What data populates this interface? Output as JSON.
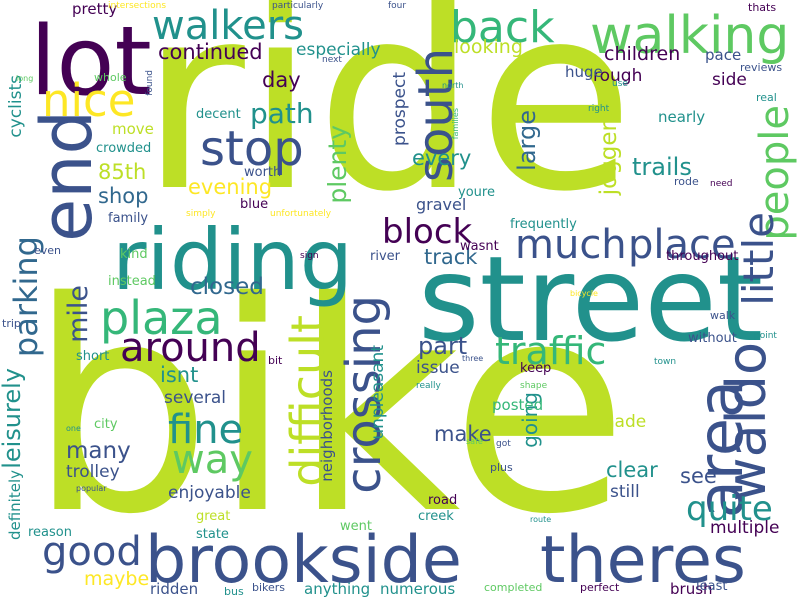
{
  "background": "#ffffff",
  "palette": [
    "#440154",
    "#3b528b",
    "#21918c",
    "#5ec962",
    "#c2df23",
    "#fde725"
  ],
  "words": [
    {
      "text": "bike",
      "color": "#bddf26"
    },
    {
      "text": "ride",
      "color": "#bddf26"
    },
    {
      "text": "street",
      "color": "#21918c"
    },
    {
      "text": "lot",
      "color": "#440154"
    },
    {
      "text": "riding",
      "color": "#21918c"
    },
    {
      "text": "brookside",
      "color": "#3b528b"
    },
    {
      "text": "theres",
      "color": "#3b528b"
    },
    {
      "text": "walking",
      "color": "#5ec962"
    },
    {
      "text": "walkers",
      "color": "#21918c"
    },
    {
      "text": "back",
      "color": "#35b779"
    },
    {
      "text": "end",
      "color": "#3b528b"
    },
    {
      "text": "nice",
      "color": "#fde725"
    },
    {
      "text": "stop",
      "color": "#3b528b"
    },
    {
      "text": "south",
      "color": "#3b528b"
    },
    {
      "text": "much",
      "color": "#3b528b"
    },
    {
      "text": "place",
      "color": "#3b528b"
    },
    {
      "text": "people",
      "color": "#5ec962"
    },
    {
      "text": "area",
      "color": "#3b528b"
    },
    {
      "text": "waldo",
      "color": "#3b528b"
    },
    {
      "text": "little",
      "color": "#3b528b"
    },
    {
      "text": "plaza",
      "color": "#35b779"
    },
    {
      "text": "around",
      "color": "#440154"
    },
    {
      "text": "traffic",
      "color": "#35b779"
    },
    {
      "text": "crossing",
      "color": "#3b528b"
    },
    {
      "text": "difficult",
      "color": "#bddf26"
    },
    {
      "text": "fine",
      "color": "#21918c"
    },
    {
      "text": "way",
      "color": "#5ec962"
    },
    {
      "text": "good",
      "color": "#3b528b"
    },
    {
      "text": "quite",
      "color": "#21918c"
    },
    {
      "text": "block",
      "color": "#440154"
    },
    {
      "text": "parking",
      "color": "#31688e"
    },
    {
      "text": "continued",
      "color": "#440154"
    },
    {
      "text": "especially",
      "color": "#21918c"
    },
    {
      "text": "looking",
      "color": "#bddf26"
    },
    {
      "text": "children",
      "color": "#440154"
    },
    {
      "text": "path",
      "color": "#21918c"
    },
    {
      "text": "day",
      "color": "#440154"
    },
    {
      "text": "evening",
      "color": "#fde725"
    },
    {
      "text": "85th",
      "color": "#bddf26"
    },
    {
      "text": "shop",
      "color": "#31688e"
    },
    {
      "text": "every",
      "color": "#21918c"
    },
    {
      "text": "trails",
      "color": "#21918c"
    },
    {
      "text": "track",
      "color": "#31688e"
    },
    {
      "text": "closed",
      "color": "#31688e"
    },
    {
      "text": "mile",
      "color": "#3b528b"
    },
    {
      "text": "plenty",
      "color": "#5ec962"
    },
    {
      "text": "joggers",
      "color": "#bddf26"
    },
    {
      "text": "large",
      "color": "#31688e"
    },
    {
      "text": "prospect",
      "color": "#3b528b"
    },
    {
      "text": "gravel",
      "color": "#3b528b"
    },
    {
      "text": "rough",
      "color": "#440154"
    },
    {
      "text": "side",
      "color": "#440154"
    },
    {
      "text": "nearly",
      "color": "#21918c"
    },
    {
      "text": "huge",
      "color": "#3b528b"
    },
    {
      "text": "pace",
      "color": "#3b528b"
    },
    {
      "text": "part",
      "color": "#3b528b"
    },
    {
      "text": "isnt",
      "color": "#21918c"
    },
    {
      "text": "several",
      "color": "#3b528b"
    },
    {
      "text": "leisurely",
      "color": "#21918c"
    },
    {
      "text": "many",
      "color": "#3b528b"
    },
    {
      "text": "trolley",
      "color": "#3b528b"
    },
    {
      "text": "enjoyable",
      "color": "#3b528b"
    },
    {
      "text": "make",
      "color": "#3b528b"
    },
    {
      "text": "going",
      "color": "#21918c"
    },
    {
      "text": "clear",
      "color": "#21918c"
    },
    {
      "text": "see",
      "color": "#3b528b"
    },
    {
      "text": "still",
      "color": "#3b528b"
    },
    {
      "text": "made",
      "color": "#bddf26"
    },
    {
      "text": "posted",
      "color": "#35b779"
    },
    {
      "text": "issue",
      "color": "#3b528b"
    },
    {
      "text": "unpleasant",
      "color": "#21918c"
    },
    {
      "text": "neighborhoods",
      "color": "#3b528b"
    },
    {
      "text": "maybe",
      "color": "#fde725"
    },
    {
      "text": "ridden",
      "color": "#3b528b"
    },
    {
      "text": "anything",
      "color": "#21918c"
    },
    {
      "text": "numerous",
      "color": "#21918c"
    },
    {
      "text": "multiple",
      "color": "#440154"
    },
    {
      "text": "brush",
      "color": "#440154"
    },
    {
      "text": "definitely",
      "color": "#21918c"
    },
    {
      "text": "cyclists",
      "color": "#21918c"
    },
    {
      "text": "pretty",
      "color": "#440154"
    },
    {
      "text": "move",
      "color": "#bddf26"
    },
    {
      "text": "crowded",
      "color": "#21918c"
    },
    {
      "text": "decent",
      "color": "#21918c"
    },
    {
      "text": "worth",
      "color": "#3b528b"
    },
    {
      "text": "blue",
      "color": "#440154"
    },
    {
      "text": "family",
      "color": "#3b528b"
    },
    {
      "text": "kind",
      "color": "#5ec962"
    },
    {
      "text": "instead",
      "color": "#5ec962"
    },
    {
      "text": "even",
      "color": "#3b528b"
    },
    {
      "text": "river",
      "color": "#3b528b"
    },
    {
      "text": "wasnt",
      "color": "#440154"
    },
    {
      "text": "frequently",
      "color": "#21918c"
    },
    {
      "text": "throughout",
      "color": "#440154"
    },
    {
      "text": "without",
      "color": "#3b528b"
    },
    {
      "text": "keep",
      "color": "#440154"
    },
    {
      "text": "short",
      "color": "#21918c"
    },
    {
      "text": "bit",
      "color": "#440154"
    },
    {
      "text": "city",
      "color": "#5ec962"
    },
    {
      "text": "road",
      "color": "#440154"
    },
    {
      "text": "creek",
      "color": "#21918c"
    },
    {
      "text": "went",
      "color": "#5ec962"
    },
    {
      "text": "great",
      "color": "#bddf26"
    },
    {
      "text": "state",
      "color": "#21918c"
    },
    {
      "text": "reason",
      "color": "#21918c"
    },
    {
      "text": "bus",
      "color": "#21918c"
    },
    {
      "text": "bikers",
      "color": "#3b528b"
    },
    {
      "text": "completed",
      "color": "#5ec962"
    },
    {
      "text": "perfect",
      "color": "#440154"
    },
    {
      "text": "least",
      "color": "#3b528b"
    },
    {
      "text": "youre",
      "color": "#21918c"
    },
    {
      "text": "rode",
      "color": "#3b528b"
    },
    {
      "text": "need",
      "color": "#440154"
    },
    {
      "text": "real",
      "color": "#21918c"
    },
    {
      "text": "reviews",
      "color": "#3b528b"
    },
    {
      "text": "thats",
      "color": "#440154"
    },
    {
      "text": "use",
      "color": "#21918c"
    },
    {
      "text": "right",
      "color": "#21918c"
    },
    {
      "text": "north",
      "color": "#21918c"
    },
    {
      "text": "families",
      "color": "#35b779"
    },
    {
      "text": "four",
      "color": "#3b528b"
    },
    {
      "text": "particularly",
      "color": "#3b528b"
    },
    {
      "text": "intersections",
      "color": "#fde725"
    },
    {
      "text": "next",
      "color": "#3b528b"
    },
    {
      "text": "found",
      "color": "#3b528b"
    },
    {
      "text": "long",
      "color": "#5ec962"
    },
    {
      "text": "whole",
      "color": "#5ec962"
    },
    {
      "text": "simply",
      "color": "#fde725"
    },
    {
      "text": "unfortunately",
      "color": "#fde725"
    },
    {
      "text": "sign",
      "color": "#440154"
    },
    {
      "text": "trip",
      "color": "#3b528b"
    },
    {
      "text": "one",
      "color": "#21918c"
    },
    {
      "text": "popular",
      "color": "#3b528b"
    },
    {
      "text": "three",
      "color": "#3b528b"
    },
    {
      "text": "really",
      "color": "#21918c"
    },
    {
      "text": "shape",
      "color": "#5ec962"
    },
    {
      "text": "safe",
      "color": "#5ec962"
    },
    {
      "text": "got",
      "color": "#3b528b"
    },
    {
      "text": "plus",
      "color": "#3b528b"
    },
    {
      "text": "route",
      "color": "#21918c"
    },
    {
      "text": "bicycle",
      "color": "#fde725"
    },
    {
      "text": "walk",
      "color": "#3b528b"
    },
    {
      "text": "point",
      "color": "#21918c"
    },
    {
      "text": "town",
      "color": "#21918c"
    }
  ]
}
